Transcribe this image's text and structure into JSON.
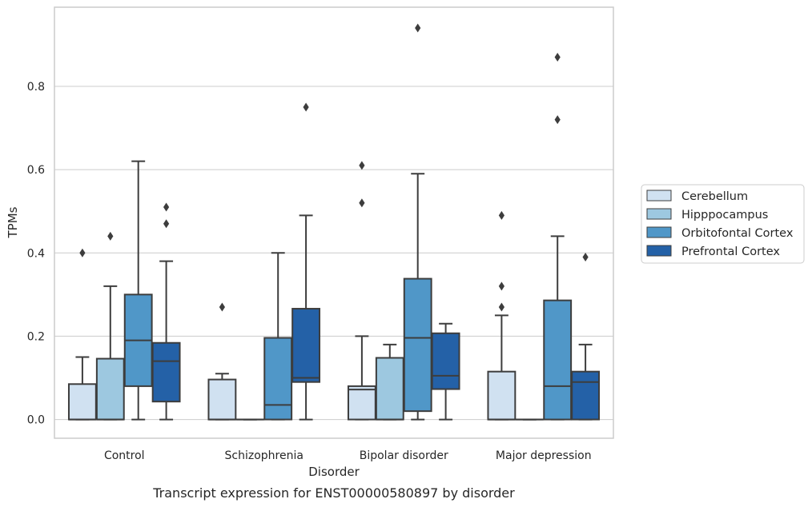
{
  "chart_data": {
    "type": "boxplot",
    "title": "",
    "caption": "Transcript expression for ENST00000580897 by disorder",
    "xlabel": "Disorder",
    "ylabel": "TPMs",
    "ylim": [
      -0.045,
      0.99
    ],
    "yticks": [
      0.0,
      0.2,
      0.4,
      0.6,
      0.8
    ],
    "ytick_labels": [
      "0.0",
      "0.2",
      "0.4",
      "0.6",
      "0.8"
    ],
    "grid": "horizontal",
    "legend_position": "right",
    "categories": [
      "Control",
      "Schizophrenia",
      "Bipolar disorder",
      "Major depression"
    ],
    "series": [
      {
        "name": "Cerebellum",
        "color": "#d0e1f1",
        "boxes": [
          {
            "whislo": 0.0,
            "q1": 0.0,
            "med": 0.0,
            "q3": 0.085,
            "whishi": 0.15,
            "fliers": [
              0.4
            ]
          },
          {
            "whislo": 0.0,
            "q1": 0.0,
            "med": 0.0,
            "q3": 0.096,
            "whishi": 0.11,
            "fliers": [
              0.27
            ]
          },
          {
            "whislo": 0.0,
            "q1": 0.0,
            "med": 0.072,
            "q3": 0.08,
            "whishi": 0.2,
            "fliers": [
              0.52,
              0.61
            ]
          },
          {
            "whislo": 0.0,
            "q1": 0.0,
            "med": 0.0,
            "q3": 0.115,
            "whishi": 0.25,
            "fliers": [
              0.27,
              0.32,
              0.49
            ]
          }
        ]
      },
      {
        "name": "Hipppocampus",
        "color": "#9dc8e0",
        "boxes": [
          {
            "whislo": 0.0,
            "q1": 0.0,
            "med": 0.0,
            "q3": 0.146,
            "whishi": 0.32,
            "fliers": [
              0.44
            ]
          },
          {
            "whislo": 0.0,
            "q1": 0.0,
            "med": 0.0,
            "q3": 0.0,
            "whishi": 0.0,
            "fliers": []
          },
          {
            "whislo": 0.0,
            "q1": 0.0,
            "med": 0.0,
            "q3": 0.148,
            "whishi": 0.18,
            "fliers": []
          },
          {
            "whislo": 0.0,
            "q1": 0.0,
            "med": 0.0,
            "q3": 0.0,
            "whishi": 0.0,
            "fliers": []
          }
        ]
      },
      {
        "name": "Orbitofontal Cortex",
        "color": "#5097c8",
        "boxes": [
          {
            "whislo": 0.0,
            "q1": 0.08,
            "med": 0.19,
            "q3": 0.3,
            "whishi": 0.62,
            "fliers": []
          },
          {
            "whislo": 0.0,
            "q1": 0.0,
            "med": 0.035,
            "q3": 0.196,
            "whishi": 0.4,
            "fliers": []
          },
          {
            "whislo": 0.0,
            "q1": 0.02,
            "med": 0.196,
            "q3": 0.338,
            "whishi": 0.59,
            "fliers": [
              0.94
            ]
          },
          {
            "whislo": 0.0,
            "q1": 0.0,
            "med": 0.08,
            "q3": 0.286,
            "whishi": 0.44,
            "fliers": [
              0.72,
              0.87
            ]
          }
        ]
      },
      {
        "name": "Prefrontal Cortex",
        "color": "#2461a7",
        "boxes": [
          {
            "whislo": 0.0,
            "q1": 0.043,
            "med": 0.14,
            "q3": 0.184,
            "whishi": 0.38,
            "fliers": [
              0.47,
              0.51
            ]
          },
          {
            "whislo": 0.0,
            "q1": 0.09,
            "med": 0.1,
            "q3": 0.266,
            "whishi": 0.49,
            "fliers": [
              0.75
            ]
          },
          {
            "whislo": 0.0,
            "q1": 0.073,
            "med": 0.105,
            "q3": 0.207,
            "whishi": 0.23,
            "fliers": []
          },
          {
            "whislo": 0.0,
            "q1": 0.0,
            "med": 0.09,
            "q3": 0.115,
            "whishi": 0.18,
            "fliers": [
              0.39
            ]
          }
        ]
      }
    ]
  }
}
